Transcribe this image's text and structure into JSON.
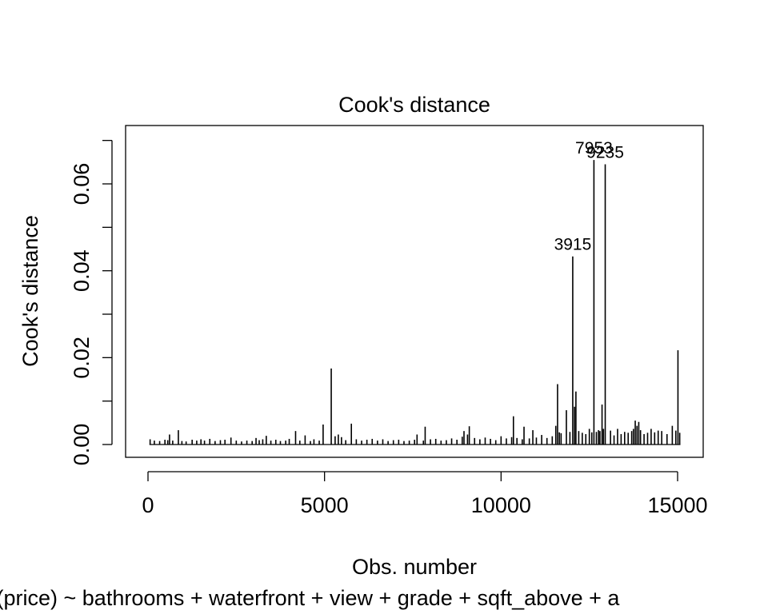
{
  "chart_data": {
    "type": "bar",
    "title": "Cook's distance",
    "xlabel": "Obs. number",
    "ylabel": "Cook's distance",
    "subtitle": "lm(log(price) ~ bathrooms + waterfront + view + grade + sqft_above + a",
    "xlim": [
      0,
      15100
    ],
    "ylim": [
      0,
      0.0665
    ],
    "x_ticks": [
      0,
      5000,
      10000,
      15000
    ],
    "x_tick_labels": [
      "0",
      "5000",
      "10000",
      "15000"
    ],
    "y_ticks": [
      0.0,
      0.01,
      0.02,
      0.03,
      0.04,
      0.05,
      0.06,
      0.07
    ],
    "y_tick_labels": [
      "0.00",
      "",
      "0.02",
      "",
      "0.04",
      "",
      "0.06",
      ""
    ],
    "grid": false,
    "series": [
      {
        "x": [
          60,
          180,
          330,
          480,
          560,
          610,
          700,
          860,
          960,
          1080,
          1250,
          1380,
          1500,
          1600,
          1750,
          1900,
          2050,
          2180,
          2350,
          2500,
          2650,
          2800,
          2950,
          3060,
          3150,
          3250,
          3350,
          3480,
          3620,
          3750,
          3900,
          4000,
          4180,
          4300,
          4450,
          4600,
          4700,
          4850,
          4960,
          5190,
          5300,
          5390,
          5480,
          5600,
          5760,
          5900,
          6050,
          6200,
          6350,
          6500,
          6650,
          6800,
          6950,
          7100,
          7250,
          7400,
          7550,
          7620,
          7800,
          7850,
          8000,
          8150,
          8300,
          8450,
          8600,
          8750,
          8900,
          8950,
          9050,
          9100,
          9250,
          9400,
          9550,
          9700,
          9850,
          10000,
          10150,
          10300,
          10350,
          10450,
          10600,
          10650,
          10800,
          10900,
          11000,
          11150,
          11300,
          11450,
          11550,
          11600,
          11650,
          11700,
          11850,
          11950,
          12030,
          12080,
          12120,
          12200,
          12300,
          12400,
          12500,
          12570,
          12630,
          12700,
          12760,
          12800,
          12860,
          12900,
          12950,
          13100,
          13200,
          13300,
          13400,
          13500,
          13600,
          13700,
          13750,
          13800,
          13850,
          13900,
          13950,
          14050,
          14150,
          14250,
          14350,
          14450,
          14550,
          14700,
          14850,
          14950,
          15010,
          15060
        ],
        "y": [
          0.0012,
          0.0009,
          0.0008,
          0.0011,
          0.001,
          0.0023,
          0.0009,
          0.0033,
          0.0008,
          0.0007,
          0.0011,
          0.0009,
          0.0012,
          0.0009,
          0.0013,
          0.0008,
          0.001,
          0.0011,
          0.0016,
          0.0009,
          0.0007,
          0.0009,
          0.0008,
          0.0015,
          0.001,
          0.0012,
          0.002,
          0.0009,
          0.0011,
          0.0008,
          0.0009,
          0.0013,
          0.0031,
          0.0009,
          0.0021,
          0.0008,
          0.0012,
          0.0009,
          0.0046,
          0.0175,
          0.0019,
          0.0023,
          0.0017,
          0.001,
          0.0048,
          0.0012,
          0.0009,
          0.0011,
          0.0013,
          0.0009,
          0.0012,
          0.0008,
          0.001,
          0.0011,
          0.0008,
          0.0009,
          0.0011,
          0.0023,
          0.0009,
          0.0041,
          0.0012,
          0.0013,
          0.0009,
          0.001,
          0.0014,
          0.0011,
          0.0018,
          0.0031,
          0.0023,
          0.0042,
          0.0015,
          0.0012,
          0.0016,
          0.0013,
          0.001,
          0.0019,
          0.0014,
          0.0017,
          0.0065,
          0.0015,
          0.0012,
          0.0041,
          0.0014,
          0.0033,
          0.0016,
          0.0022,
          0.0015,
          0.0019,
          0.0043,
          0.0139,
          0.0028,
          0.0026,
          0.0079,
          0.0029,
          0.0433,
          0.0087,
          0.0122,
          0.0031,
          0.0027,
          0.0024,
          0.0036,
          0.0028,
          0.0655,
          0.0029,
          0.0033,
          0.0031,
          0.0092,
          0.0036,
          0.0645,
          0.0032,
          0.0021,
          0.0036,
          0.0024,
          0.0029,
          0.0027,
          0.0031,
          0.0036,
          0.0055,
          0.0043,
          0.0052,
          0.0033,
          0.0024,
          0.0027,
          0.0036,
          0.0028,
          0.0032,
          0.0031,
          0.0024,
          0.0043,
          0.0032,
          0.0217,
          0.0027
        ]
      }
    ],
    "annotations": [
      {
        "label": "3915",
        "x": 12030,
        "y": 0.0433
      },
      {
        "label": "7953",
        "x": 12630,
        "y": 0.0655
      },
      {
        "label": "9235",
        "x": 12950,
        "y": 0.0645
      }
    ]
  }
}
